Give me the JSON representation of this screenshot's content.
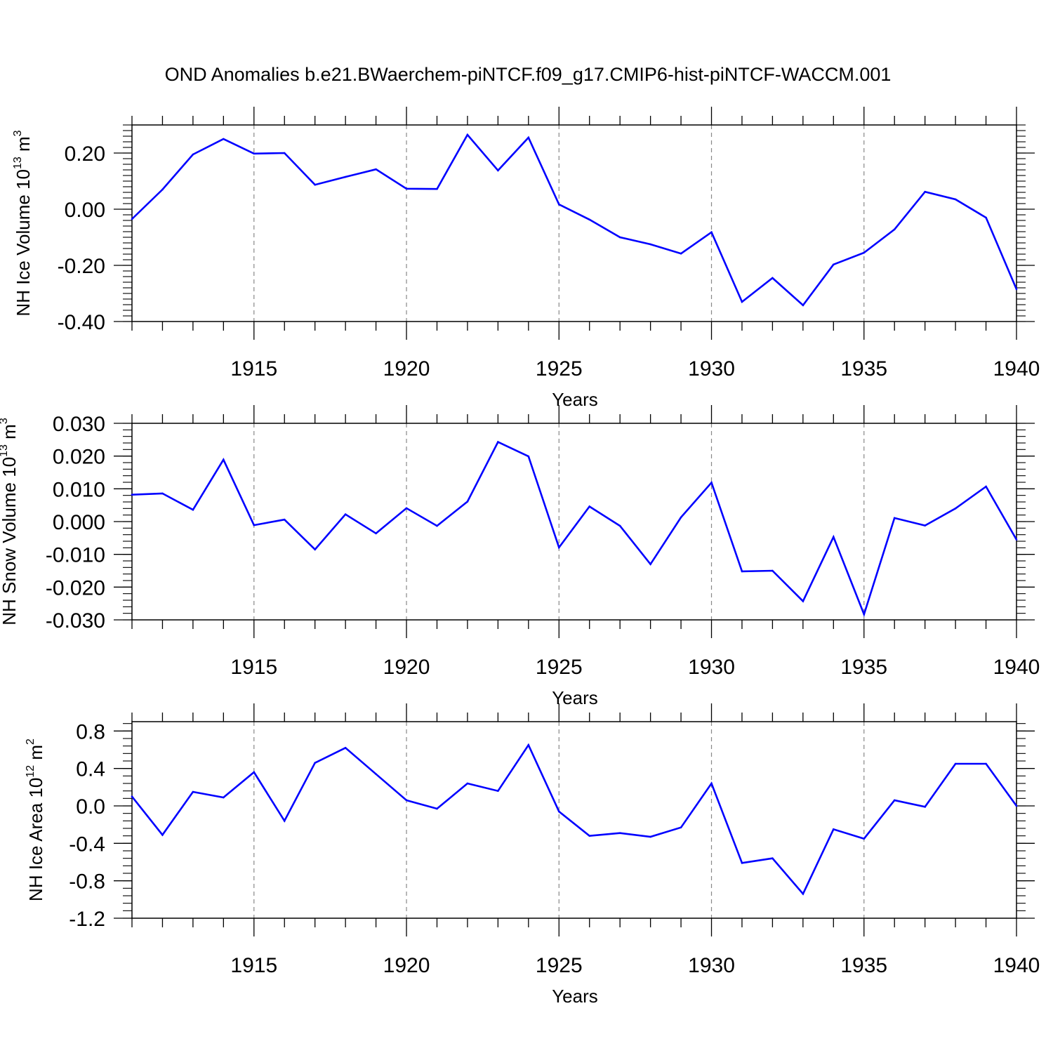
{
  "figure_title": "OND Anomalies b.e21.BWaerchem-piNTCF.f09_g17.CMIP6-hist-piNTCF-WACCM.001",
  "colors": {
    "series": "#0000ff",
    "axis": "#000000",
    "grid": "#888888"
  },
  "chart_data": [
    {
      "type": "line",
      "id": "ice-volume",
      "ylabel": {
        "text": "NH Ice Volume 10",
        "exp": "13",
        "unit": " m",
        "unit_exp": "3"
      },
      "xlabel": "Years",
      "xlim": [
        1911,
        1940
      ],
      "ylim": [
        -0.4,
        0.3
      ],
      "yticks": [
        -0.4,
        -0.2,
        0.0,
        0.2
      ],
      "ytick_labels": [
        "-0.40",
        "-0.20",
        "0.00",
        "0.20"
      ],
      "xticks": [
        1915,
        1920,
        1925,
        1930,
        1935,
        1940
      ],
      "xtick_labels": [
        "1915",
        "1920",
        "1925",
        "1930",
        "1935",
        "1940"
      ],
      "x": [
        1911,
        1912,
        1913,
        1914,
        1915,
        1916,
        1917,
        1918,
        1919,
        1920,
        1921,
        1922,
        1923,
        1924,
        1925,
        1926,
        1927,
        1928,
        1929,
        1930,
        1931,
        1932,
        1933,
        1934,
        1935,
        1936,
        1937,
        1938,
        1939,
        1940
      ],
      "values": [
        -0.035,
        0.07,
        0.195,
        0.25,
        0.198,
        0.2,
        0.087,
        0.115,
        0.142,
        0.073,
        0.072,
        0.265,
        0.138,
        0.255,
        0.017,
        -0.037,
        -0.1,
        -0.125,
        -0.158,
        -0.082,
        -0.33,
        -0.245,
        -0.342,
        -0.197,
        -0.155,
        -0.072,
        0.062,
        0.035,
        -0.03,
        -0.285
      ]
    },
    {
      "type": "line",
      "id": "snow-volume",
      "ylabel": {
        "text": "NH Snow Volume 10",
        "exp": "13",
        "unit": " m",
        "unit_exp": "3"
      },
      "xlabel": "Years",
      "xlim": [
        1911,
        1940
      ],
      "ylim": [
        -0.03,
        0.03
      ],
      "yticks": [
        -0.03,
        -0.02,
        -0.01,
        0.0,
        0.01,
        0.02,
        0.03
      ],
      "ytick_labels": [
        "-0.030",
        "-0.020",
        "-0.010",
        "0.000",
        "0.010",
        "0.020",
        "0.030"
      ],
      "xticks": [
        1915,
        1920,
        1925,
        1930,
        1935,
        1940
      ],
      "xtick_labels": [
        "1915",
        "1920",
        "1925",
        "1930",
        "1935",
        "1940"
      ],
      "x": [
        1911,
        1912,
        1913,
        1914,
        1915,
        1916,
        1917,
        1918,
        1919,
        1920,
        1921,
        1922,
        1923,
        1924,
        1925,
        1926,
        1927,
        1928,
        1929,
        1930,
        1931,
        1932,
        1933,
        1934,
        1935,
        1936,
        1937,
        1938,
        1939,
        1940
      ],
      "values": [
        0.0082,
        0.0086,
        0.0036,
        0.0189,
        -0.0011,
        0.0006,
        -0.0085,
        0.0022,
        -0.0036,
        0.0041,
        -0.0013,
        0.0061,
        0.0243,
        0.0199,
        -0.0079,
        0.0046,
        -0.0013,
        -0.013,
        0.0013,
        0.0119,
        -0.0152,
        -0.015,
        -0.0243,
        -0.0047,
        -0.0283,
        0.0011,
        -0.0012,
        0.004,
        0.0107,
        -0.0055
      ]
    },
    {
      "type": "line",
      "id": "ice-area",
      "ylabel": {
        "text": "NH Ice Area 10",
        "exp": "12",
        "unit": " m",
        "unit_exp": "2"
      },
      "xlabel": "Years",
      "xlim": [
        1911,
        1940
      ],
      "ylim": [
        -1.2,
        0.9
      ],
      "yticks": [
        -1.2,
        -0.8,
        -0.4,
        0.0,
        0.4,
        0.8
      ],
      "ytick_labels": [
        "-1.2",
        "-0.8",
        "-0.4",
        "0.0",
        "0.4",
        "0.8"
      ],
      "xticks": [
        1915,
        1920,
        1925,
        1930,
        1935,
        1940
      ],
      "xtick_labels": [
        "1915",
        "1920",
        "1925",
        "1930",
        "1935",
        "1940"
      ],
      "x": [
        1911,
        1912,
        1913,
        1914,
        1915,
        1916,
        1917,
        1918,
        1919,
        1920,
        1921,
        1922,
        1923,
        1924,
        1925,
        1926,
        1927,
        1928,
        1929,
        1930,
        1931,
        1932,
        1933,
        1934,
        1935,
        1936,
        1937,
        1938,
        1939,
        1940
      ],
      "values": [
        0.1,
        -0.31,
        0.15,
        0.09,
        0.36,
        -0.16,
        0.46,
        0.62,
        0.34,
        0.06,
        -0.03,
        0.24,
        0.16,
        0.65,
        -0.06,
        -0.32,
        -0.29,
        -0.33,
        -0.23,
        0.24,
        -0.61,
        -0.56,
        -0.94,
        -0.25,
        -0.35,
        0.06,
        -0.01,
        0.45,
        0.45,
        0.0
      ]
    }
  ]
}
